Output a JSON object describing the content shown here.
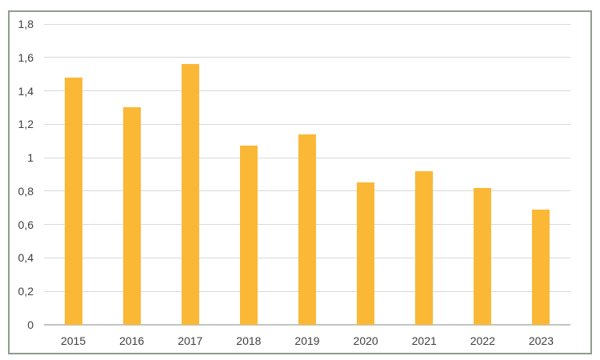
{
  "chart_data": {
    "type": "bar",
    "title": "",
    "xlabel": "",
    "ylabel": "",
    "categories": [
      "2015",
      "2016",
      "2017",
      "2018",
      "2019",
      "2020",
      "2021",
      "2022",
      "2023"
    ],
    "values": [
      1.48,
      1.3,
      1.56,
      1.07,
      1.14,
      0.85,
      0.92,
      0.82,
      0.69
    ],
    "ylim": [
      0,
      1.8
    ],
    "y_tick_interval": 0.2,
    "y_tick_values": [
      0,
      0.2,
      0.4,
      0.6,
      0.8,
      1.0,
      1.2,
      1.4,
      1.6,
      1.8
    ],
    "y_tick_labels": [
      "0",
      "0,2",
      "0,4",
      "0,6",
      "0,8",
      "1",
      "1,2",
      "1,4",
      "1,6",
      "1,8"
    ],
    "decimal_separator": ",",
    "grid": true,
    "legend": false,
    "colors": {
      "bar": "#fbb836",
      "gridline": "#d9d9d9",
      "axis_line": "#c1c5c1",
      "tick_label": "#3f3f3f",
      "frame_border": "#8e9d8e",
      "background": "#ffffff"
    }
  }
}
